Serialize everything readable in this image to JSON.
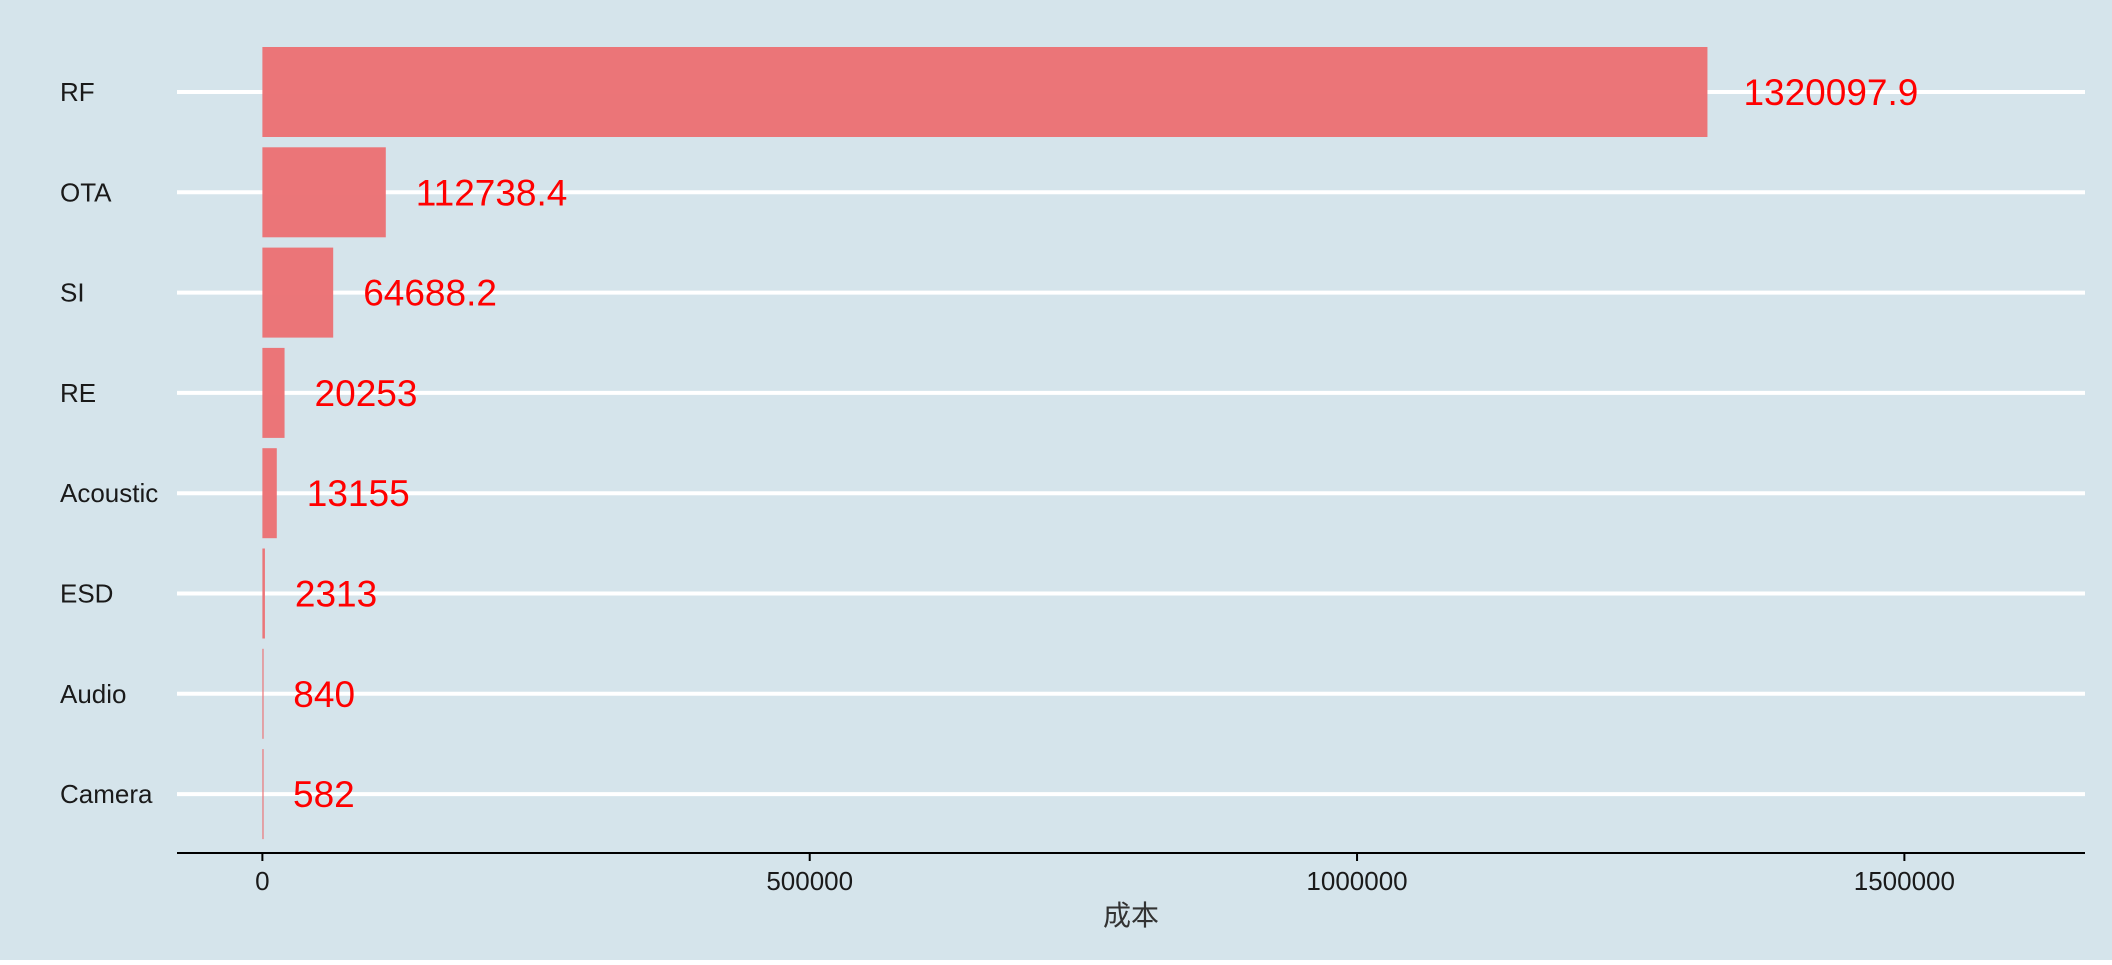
{
  "chart_data": {
    "type": "bar",
    "orientation": "horizontal",
    "title": "",
    "categories": [
      "RF",
      "OTA",
      "SI",
      "RE",
      "Acoustic",
      "ESD",
      "Audio",
      "Camera"
    ],
    "values": [
      1320097.9,
      112738.4,
      64688.2,
      20253,
      13155,
      2313,
      840,
      582
    ],
    "value_labels": [
      "1320097.9",
      "112738.4",
      "64688.2",
      "20253",
      "13155",
      "2313",
      "840",
      "582"
    ],
    "xlabel": "成本",
    "ylabel": "",
    "xlim": [
      -78000,
      1665000
    ],
    "x_ticks": [
      0,
      500000,
      1000000,
      1500000
    ],
    "x_tick_labels": [
      "0",
      "500000",
      "1000000",
      "1500000"
    ],
    "grid": "horizontal-major",
    "legend": "none",
    "colors": {
      "panel_background": "#d5e4eb",
      "bar_fill": "#ec7275",
      "value_label": "#ff0000",
      "gridline": "#ffffff",
      "axis_line": "#000000"
    }
  }
}
